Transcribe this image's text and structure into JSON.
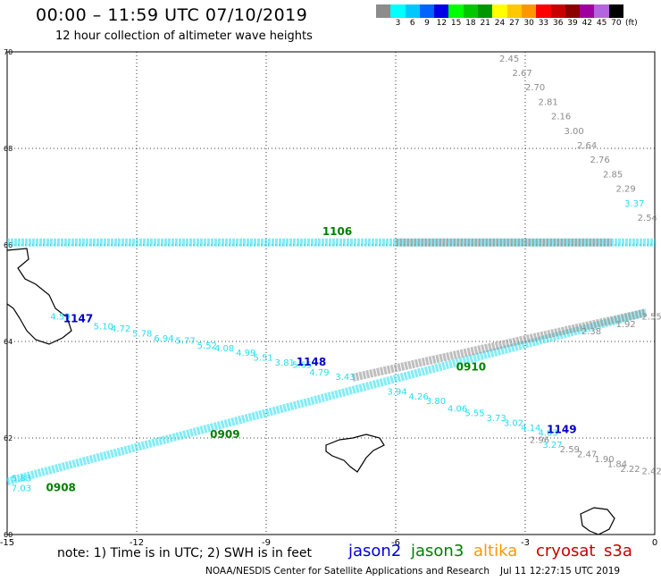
{
  "header": {
    "title": "00:00 – 11:59 UTC 07/10/2019",
    "subtitle": "12 hour collection of altimeter wave heights"
  },
  "legend": {
    "unit": "(ft)",
    "items": [
      {
        "label": "",
        "color": "#8c8c8c"
      },
      {
        "label": "3",
        "color": "#00ffff"
      },
      {
        "label": "6",
        "color": "#00c8ff"
      },
      {
        "label": "9",
        "color": "#0064ff"
      },
      {
        "label": "12",
        "color": "#0000e6"
      },
      {
        "label": "15",
        "color": "#00ff00"
      },
      {
        "label": "18",
        "color": "#00c800"
      },
      {
        "label": "21",
        "color": "#009600"
      },
      {
        "label": "24",
        "color": "#ffff00"
      },
      {
        "label": "27",
        "color": "#ffc800"
      },
      {
        "label": "30",
        "color": "#ff9600"
      },
      {
        "label": "33",
        "color": "#ff0000"
      },
      {
        "label": "36",
        "color": "#c80000"
      },
      {
        "label": "39",
        "color": "#8c0000"
      },
      {
        "label": "42",
        "color": "#a000a0"
      },
      {
        "label": "45",
        "color": "#b464dc"
      },
      {
        "label": "70",
        "color": "#000000"
      }
    ]
  },
  "map": {
    "lon_range": [
      -15,
      0
    ],
    "lat_range": [
      60,
      70
    ],
    "x_ticks": [
      "-15",
      "-12",
      "-9",
      "-6",
      "-3",
      "0"
    ],
    "y_ticks": [
      "60",
      "62",
      "64",
      "66",
      "68",
      "70"
    ]
  },
  "chart_data": {
    "type": "scatter",
    "series": [
      {
        "name": "jason2",
        "color": "#0000c8",
        "track_times": [
          {
            "text": "1147",
            "lon": -13.7,
            "lat": 64.4
          },
          {
            "text": "1148",
            "lon": -8.3,
            "lat": 63.5
          },
          {
            "text": "1149",
            "lon": -2.5,
            "lat": 62.1
          }
        ]
      },
      {
        "name": "jason3",
        "color": "#008000",
        "track_times": [
          {
            "text": "1106",
            "lon": -7.7,
            "lat": 66.2
          },
          {
            "text": "0910",
            "lon": -4.6,
            "lat": 63.4
          },
          {
            "text": "0909",
            "lon": -10.3,
            "lat": 62.0
          },
          {
            "text": "0908",
            "lon": -14.1,
            "lat": 60.9
          }
        ]
      },
      {
        "name": "altika",
        "color": "#ff8c00",
        "track_times": []
      },
      {
        "name": "cryosat s3a",
        "color": "#c80000",
        "track_times": []
      }
    ],
    "swh_values": [
      {
        "v": "2.45",
        "lon": -3.6,
        "lat": 69.8,
        "c": "gray"
      },
      {
        "v": "2.67",
        "lon": -3.3,
        "lat": 69.5,
        "c": "gray"
      },
      {
        "v": "2.70",
        "lon": -3.0,
        "lat": 69.2,
        "c": "gray"
      },
      {
        "v": "2.81",
        "lon": -2.7,
        "lat": 68.9,
        "c": "gray"
      },
      {
        "v": "2.16",
        "lon": -2.4,
        "lat": 68.6,
        "c": "gray"
      },
      {
        "v": "3.00",
        "lon": -2.1,
        "lat": 68.3,
        "c": "gray"
      },
      {
        "v": "2.64",
        "lon": -1.8,
        "lat": 68.0,
        "c": "gray"
      },
      {
        "v": "2.76",
        "lon": -1.5,
        "lat": 67.7,
        "c": "gray"
      },
      {
        "v": "2.85",
        "lon": -1.2,
        "lat": 67.4,
        "c": "gray"
      },
      {
        "v": "2.29",
        "lon": -0.9,
        "lat": 67.1,
        "c": "gray"
      },
      {
        "v": "3.37",
        "lon": -0.7,
        "lat": 66.8,
        "c": "cyan"
      },
      {
        "v": "2.54",
        "lon": -0.4,
        "lat": 66.5,
        "c": "gray"
      },
      {
        "v": "4.59",
        "lon": -14.0,
        "lat": 64.45,
        "c": "cyan"
      },
      {
        "v": "5.10",
        "lon": -13.0,
        "lat": 64.25,
        "c": "cyan"
      },
      {
        "v": "4.72",
        "lon": -12.6,
        "lat": 64.2,
        "c": "cyan"
      },
      {
        "v": "5.78",
        "lon": -12.1,
        "lat": 64.1,
        "c": "cyan"
      },
      {
        "v": "6.94",
        "lon": -11.6,
        "lat": 64.0,
        "c": "cyan"
      },
      {
        "v": "5.77",
        "lon": -11.1,
        "lat": 63.95,
        "c": "cyan"
      },
      {
        "v": "5.52",
        "lon": -10.6,
        "lat": 63.85,
        "c": "cyan"
      },
      {
        "v": "4.08",
        "lon": -10.2,
        "lat": 63.8,
        "c": "cyan"
      },
      {
        "v": "4.99",
        "lon": -9.7,
        "lat": 63.7,
        "c": "cyan"
      },
      {
        "v": "5.51",
        "lon": -9.3,
        "lat": 63.6,
        "c": "cyan"
      },
      {
        "v": "3.81",
        "lon": -8.8,
        "lat": 63.5,
        "c": "cyan"
      },
      {
        "v": "5.65",
        "lon": -8.4,
        "lat": 63.45,
        "c": "cyan"
      },
      {
        "v": "4.79",
        "lon": -8.0,
        "lat": 63.3,
        "c": "cyan"
      },
      {
        "v": "3.43",
        "lon": -7.4,
        "lat": 63.2,
        "c": "cyan"
      },
      {
        "v": "3.94",
        "lon": -6.2,
        "lat": 62.9,
        "c": "cyan"
      },
      {
        "v": "4.26",
        "lon": -5.7,
        "lat": 62.8,
        "c": "cyan"
      },
      {
        "v": "3.80",
        "lon": -5.3,
        "lat": 62.7,
        "c": "cyan"
      },
      {
        "v": "4.06",
        "lon": -4.8,
        "lat": 62.55,
        "c": "cyan"
      },
      {
        "v": "5.55",
        "lon": -4.4,
        "lat": 62.45,
        "c": "cyan"
      },
      {
        "v": "3.73",
        "lon": -3.9,
        "lat": 62.35,
        "c": "cyan"
      },
      {
        "v": "3.02",
        "lon": -3.5,
        "lat": 62.25,
        "c": "cyan"
      },
      {
        "v": "4.14",
        "lon": -3.1,
        "lat": 62.15,
        "c": "cyan"
      },
      {
        "v": "4.03",
        "lon": -2.7,
        "lat": 62.05,
        "c": "cyan"
      },
      {
        "v": "2.96",
        "lon": -2.9,
        "lat": 61.9,
        "c": "gray"
      },
      {
        "v": "3.27",
        "lon": -2.6,
        "lat": 61.8,
        "c": "cyan"
      },
      {
        "v": "2.59",
        "lon": -2.2,
        "lat": 61.7,
        "c": "gray"
      },
      {
        "v": "2.47",
        "lon": -1.8,
        "lat": 61.6,
        "c": "gray"
      },
      {
        "v": "1.90",
        "lon": -1.4,
        "lat": 61.5,
        "c": "gray"
      },
      {
        "v": "1.84",
        "lon": -1.1,
        "lat": 61.4,
        "c": "gray"
      },
      {
        "v": "2.22",
        "lon": -0.8,
        "lat": 61.3,
        "c": "gray"
      },
      {
        "v": "2.42",
        "lon": -0.3,
        "lat": 61.25,
        "c": "gray"
      },
      {
        "v": "7.03",
        "lon": -14.9,
        "lat": 60.9,
        "c": "cyan"
      },
      {
        "v": "5.83",
        "lon": -14.9,
        "lat": 61.1,
        "c": "cyan"
      },
      {
        "v": "1.92",
        "lon": -0.9,
        "lat": 64.3,
        "c": "gray"
      },
      {
        "v": "2.38",
        "lon": -1.7,
        "lat": 64.15,
        "c": "gray"
      },
      {
        "v": "2.55",
        "lon": -0.3,
        "lat": 64.45,
        "c": "gray"
      }
    ]
  },
  "satellites": [
    {
      "name": "jason2",
      "color": "#0000dc"
    },
    {
      "name": "jason3",
      "color": "#008000"
    },
    {
      "name": "altika",
      "color": "#ff9600"
    },
    {
      "name": "cryosat",
      "color": "#c80000"
    },
    {
      "name": "s3a",
      "color": "#c80000"
    }
  ],
  "footer": {
    "note": "note:  1) Time is in UTC;  2) SWH is in feet",
    "credit": "NOAA/NESDIS Center for Satellite Applications and Research",
    "timestamp": "Jul 11 12:27:15 UTC 2019"
  }
}
